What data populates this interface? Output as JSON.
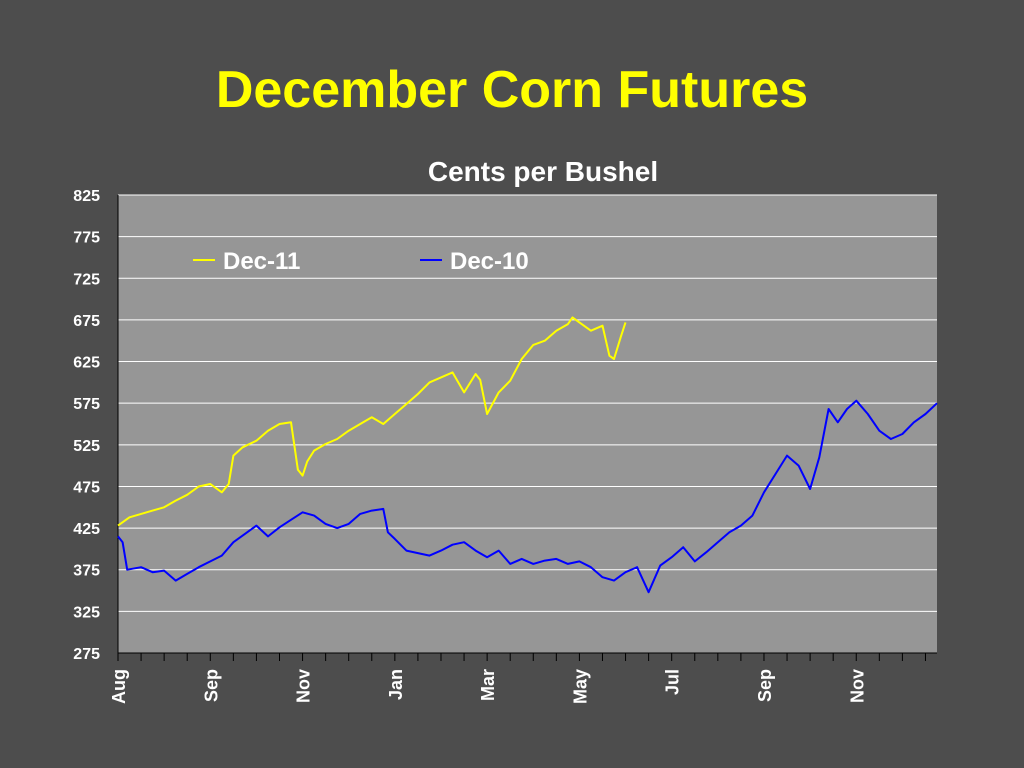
{
  "slide": {
    "title": "December Corn Futures"
  },
  "chart_data": {
    "type": "line",
    "subtitle": "Cents per Bushel",
    "xlabel": "",
    "ylabel": "",
    "ylim": [
      275,
      825
    ],
    "y_ticks": [
      275,
      325,
      375,
      425,
      475,
      525,
      575,
      625,
      675,
      725,
      775,
      825
    ],
    "x_tick_labels": [
      "Aug",
      "Sep",
      "Nov",
      "Jan",
      "Mar",
      "May",
      "Jul",
      "Sep",
      "Nov"
    ],
    "x_tick_months": [
      0,
      2,
      4,
      6,
      8,
      10,
      12,
      14,
      16
    ],
    "xlim_months": [
      0,
      17.75
    ],
    "grid": true,
    "legend_position": "top-left",
    "colors": {
      "background": "#4d4d4d",
      "plot_area": "#969696",
      "title": "#ffff00",
      "text": "#ffffff",
      "gridline": "#ffffff"
    },
    "series": [
      {
        "name": "Dec-11",
        "color": "#ffff00",
        "x_months": [
          0,
          0.25,
          0.5,
          0.75,
          1,
          1.25,
          1.5,
          1.75,
          2,
          2.25,
          2.4,
          2.5,
          2.7,
          3,
          3.25,
          3.5,
          3.75,
          3.9,
          4,
          4.1,
          4.25,
          4.5,
          4.75,
          5,
          5.25,
          5.5,
          5.75,
          6,
          6.25,
          6.5,
          6.75,
          7,
          7.25,
          7.5,
          7.75,
          7.85,
          8,
          8.25,
          8.5,
          8.75,
          9,
          9.25,
          9.5,
          9.75,
          9.85,
          10,
          10.25,
          10.5,
          10.65,
          10.75,
          10.9,
          11
        ],
        "values": [
          428,
          438,
          442,
          446,
          450,
          458,
          465,
          475,
          478,
          468,
          478,
          512,
          522,
          530,
          542,
          550,
          552,
          495,
          488,
          505,
          518,
          526,
          532,
          542,
          550,
          558,
          550,
          562,
          574,
          586,
          600,
          606,
          612,
          588,
          610,
          603,
          562,
          588,
          602,
          628,
          645,
          650,
          662,
          670,
          678,
          672,
          662,
          668,
          632,
          628,
          655,
          672
        ]
      },
      {
        "name": "Dec-10",
        "color": "#0000ff",
        "x_months": [
          0,
          0.1,
          0.2,
          0.5,
          0.75,
          1,
          1.25,
          1.5,
          1.75,
          2,
          2.25,
          2.5,
          2.75,
          3,
          3.25,
          3.5,
          3.75,
          4,
          4.25,
          4.5,
          4.75,
          5,
          5.25,
          5.5,
          5.75,
          5.85,
          6,
          6.25,
          6.5,
          6.75,
          7,
          7.25,
          7.5,
          7.75,
          8,
          8.25,
          8.5,
          8.75,
          9,
          9.25,
          9.5,
          9.75,
          10,
          10.25,
          10.5,
          10.75,
          11,
          11.25,
          11.5,
          11.75,
          12,
          12.25,
          12.5,
          12.75,
          13,
          13.25,
          13.5,
          13.75,
          14,
          14.25,
          14.5,
          14.75,
          15,
          15.2,
          15.4,
          15.6,
          15.8,
          16,
          16.25,
          16.5,
          16.75,
          17,
          17.25,
          17.5,
          17.75
        ],
        "values": [
          415,
          408,
          375,
          378,
          372,
          374,
          362,
          370,
          378,
          385,
          392,
          408,
          418,
          428,
          415,
          426,
          435,
          444,
          440,
          430,
          425,
          430,
          442,
          446,
          448,
          420,
          412,
          398,
          395,
          392,
          398,
          405,
          408,
          398,
          390,
          398,
          382,
          388,
          382,
          386,
          388,
          382,
          385,
          378,
          366,
          362,
          372,
          378,
          348,
          380,
          390,
          402,
          385,
          396,
          408,
          420,
          428,
          440,
          468,
          490,
          512,
          500,
          472,
          510,
          568,
          552,
          568,
          578,
          562,
          542,
          532,
          538,
          552,
          562,
          575
        ]
      }
    ]
  }
}
